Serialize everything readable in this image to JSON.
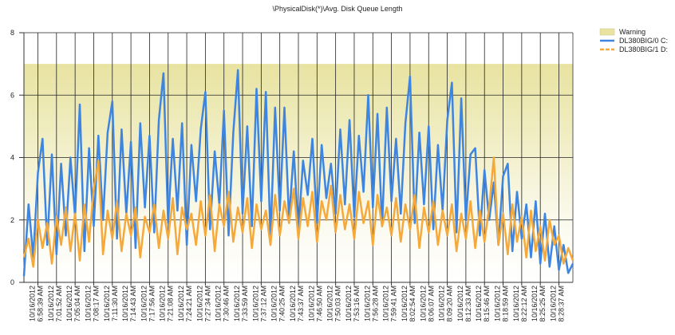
{
  "chart_data": {
    "type": "line",
    "title": "\\PhysicalDisk(*)\\Avg. Disk Queue Length",
    "ylim": [
      0,
      8
    ],
    "yticks": [
      0,
      2,
      4,
      6,
      8
    ],
    "grid": true,
    "legend": "right",
    "warning": {
      "label": "Warning",
      "from": 0,
      "to": 7,
      "color": "#e8e3a0"
    },
    "categories": [
      null,
      null,
      null,
      "10/16/2012\n6:58:39 AM",
      null,
      null,
      null,
      "10/16/2012\n7:01:52 AM",
      null,
      null,
      null,
      "10/16/2012\n7:05:04 AM",
      null,
      null,
      null,
      "10/16/2012\n7:08:17 AM",
      null,
      null,
      null,
      "10/16/2012\n7:11:30 AM",
      null,
      null,
      null,
      "10/16/2012\n7:14:43 AM",
      null,
      null,
      null,
      "10/16/2012\n7:17:56 AM",
      null,
      null,
      null,
      "10/16/2012\n7:21:08 AM",
      null,
      null,
      null,
      "10/16/2012\n7:24:21 AM",
      null,
      null,
      null,
      "10/16/2012\n7:27:34 AM",
      null,
      null,
      null,
      "10/16/2012\n7:30:46 AM",
      null,
      null,
      null,
      "10/16/2012\n7:33:59 AM",
      null,
      null,
      null,
      "10/16/2012\n7:37:12 AM",
      null,
      null,
      null,
      "10/16/2012\n7:40:25 AM",
      null,
      null,
      null,
      "10/16/2012\n7:43:37 AM",
      null,
      null,
      null,
      "10/16/2012\n7:46:50 AM",
      null,
      null,
      null,
      "10/16/2012\n7:50:03 AM",
      null,
      null,
      null,
      "10/16/2012\n7:53:16 AM",
      null,
      null,
      null,
      "10/16/2012\n7:56:28 AM",
      null,
      null,
      null,
      "10/16/2012\n7:59:41 AM",
      null,
      null,
      null,
      "10/16/2012\n8:02:54 AM",
      null,
      null,
      null,
      "10/16/2012\n8:06:07 AM",
      null,
      null,
      null,
      "10/16/2012\n8:09:20 AM",
      null,
      null,
      null,
      "10/16/2012\n8:12:33 AM",
      null,
      null,
      null,
      "10/16/2012\n8:15:46 AM",
      null,
      null,
      null,
      "10/16/2012\n8:18:59 AM",
      null,
      null,
      null,
      "10/16/2012\n8:22:12 AM",
      null,
      null,
      null,
      "10/16/2012\n8:25:25 AM",
      null,
      null,
      null,
      "10/16/2012\n8:28:37 AM",
      null,
      null,
      null
    ],
    "series": [
      {
        "name": "DL380BIG/0 C:",
        "color": "#3d85e0",
        "dash": false,
        "values": [
          0.2,
          2.5,
          0.8,
          3.5,
          4.6,
          1.2,
          4.1,
          0.9,
          3.8,
          1.5,
          4.0,
          2.1,
          5.7,
          1.0,
          4.3,
          1.8,
          4.7,
          2.0,
          4.8,
          5.8,
          1.4,
          4.9,
          2.2,
          4.5,
          1.1,
          5.1,
          2.4,
          4.7,
          1.6,
          5.2,
          6.7,
          1.9,
          4.6,
          2.3,
          5.1,
          1.2,
          4.4,
          2.6,
          4.9,
          6.1,
          1.7,
          4.2,
          2.5,
          5.5,
          1.5,
          4.8,
          6.8,
          2.2,
          5.0,
          1.8,
          6.2,
          2.6,
          6.1,
          1.4,
          5.6,
          2.3,
          5.6,
          2.0,
          4.2,
          1.6,
          3.9,
          2.8,
          4.6,
          1.9,
          4.4,
          2.7,
          3.8,
          2.2,
          4.9,
          2.5,
          5.2,
          2.1,
          4.7,
          2.9,
          6.0,
          2.4,
          5.4,
          1.8,
          5.6,
          2.6,
          4.6,
          2.2,
          5.1,
          6.6,
          1.9,
          4.8,
          2.5,
          5.0,
          1.7,
          4.4,
          2.3,
          5.2,
          6.4,
          1.6,
          5.9,
          2.0,
          4.1,
          4.3,
          1.5,
          3.6,
          2.0,
          3.2,
          1.2,
          3.4,
          3.8,
          1.0,
          2.9,
          1.4,
          2.5,
          0.8,
          2.6,
          0.6,
          2.2,
          0.5,
          1.8,
          0.4,
          1.2,
          0.3,
          0.6
        ]
      },
      {
        "name": "DL380BIG/1 D:",
        "color": "#f5a93a",
        "dash": true,
        "values": [
          0.8,
          1.4,
          0.5,
          2.0,
          1.1,
          1.9,
          0.6,
          2.1,
          1.2,
          2.4,
          1.0,
          2.2,
          0.7,
          2.5,
          1.3,
          3.0,
          3.9,
          0.9,
          2.3,
          1.4,
          2.6,
          1.0,
          2.2,
          1.5,
          2.4,
          0.8,
          2.1,
          1.6,
          2.5,
          1.1,
          2.3,
          1.4,
          2.7,
          0.9,
          2.4,
          1.7,
          2.2,
          1.2,
          2.6,
          1.5,
          2.8,
          1.0,
          2.5,
          1.8,
          2.9,
          1.3,
          2.4,
          1.6,
          2.7,
          1.1,
          2.5,
          1.7,
          2.3,
          1.2,
          2.8,
          1.5,
          2.6,
          1.9,
          3.0,
          1.4,
          2.7,
          1.8,
          2.9,
          1.3,
          2.6,
          2.0,
          3.1,
          1.6,
          2.8,
          1.7,
          2.5,
          1.4,
          2.9,
          1.9,
          2.6,
          1.2,
          2.8,
          1.8,
          2.4,
          1.5,
          2.7,
          1.3,
          2.5,
          1.7,
          2.8,
          1.1,
          2.4,
          1.6,
          2.6,
          1.2,
          2.3,
          1.5,
          2.5,
          1.0,
          2.2,
          1.4,
          2.6,
          1.1,
          2.3,
          1.3,
          2.4,
          4.0,
          1.2,
          2.2,
          0.9,
          2.5,
          1.3,
          2.1,
          0.8,
          2.3,
          1.0,
          1.8,
          0.7,
          2.0,
          1.2,
          1.5,
          0.6,
          1.1,
          0.7
        ]
      }
    ]
  }
}
